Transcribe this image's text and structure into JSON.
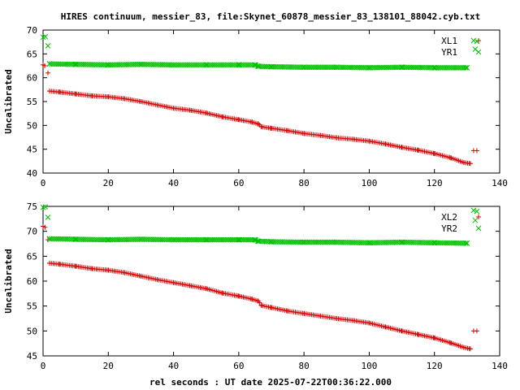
{
  "title": "HIRES continuum, messier_83, file:Skynet_60878_messier_83_138101_88042.cyb.txt",
  "xlabel": "rel seconds : UT date 2025-07-22T00:36:22.000",
  "chart_data": [
    {
      "type": "scatter",
      "ylabel": "Uncalibrated",
      "xlim": [
        0,
        140
      ],
      "ylim": [
        40,
        70
      ],
      "xticks": [
        0,
        20,
        40,
        60,
        80,
        100,
        120,
        140
      ],
      "yticks": [
        40,
        45,
        50,
        55,
        60,
        65,
        70
      ],
      "legend": "top-right",
      "series": [
        {
          "name": "XL1",
          "color": "#e00000",
          "marker": "plus",
          "points": [
            [
              0,
              62.7
            ],
            [
              0.5,
              62.5
            ],
            [
              1.5,
              61.0
            ],
            [
              2,
              57.2
            ],
            [
              5,
              57.0
            ],
            [
              10,
              56.6
            ],
            [
              15,
              56.2
            ],
            [
              20,
              56.0
            ],
            [
              25,
              55.6
            ],
            [
              30,
              55.0
            ],
            [
              35,
              54.3
            ],
            [
              40,
              53.6
            ],
            [
              45,
              53.2
            ],
            [
              50,
              52.6
            ],
            [
              55,
              51.8
            ],
            [
              60,
              51.2
            ],
            [
              64,
              50.7
            ],
            [
              66,
              50.3
            ],
            [
              67,
              49.7
            ],
            [
              70,
              49.4
            ],
            [
              75,
              48.9
            ],
            [
              80,
              48.3
            ],
            [
              85,
              47.9
            ],
            [
              90,
              47.4
            ],
            [
              95,
              47.1
            ],
            [
              100,
              46.7
            ],
            [
              105,
              46.1
            ],
            [
              110,
              45.4
            ],
            [
              115,
              44.8
            ],
            [
              120,
              44.1
            ],
            [
              125,
              43.2
            ],
            [
              129,
              42.2
            ],
            [
              131,
              42.0
            ],
            [
              132,
              44.7
            ],
            [
              133,
              44.7
            ]
          ]
        },
        {
          "name": "YR1",
          "color": "#00c000",
          "marker": "x",
          "points": [
            [
              0,
              68.5
            ],
            [
              0.7,
              68.6
            ],
            [
              1.5,
              66.7
            ],
            [
              2,
              62.9
            ],
            [
              10,
              62.8
            ],
            [
              20,
              62.7
            ],
            [
              30,
              62.8
            ],
            [
              40,
              62.7
            ],
            [
              50,
              62.7
            ],
            [
              60,
              62.7
            ],
            [
              65,
              62.7
            ],
            [
              66,
              62.4
            ],
            [
              70,
              62.3
            ],
            [
              80,
              62.2
            ],
            [
              90,
              62.2
            ],
            [
              100,
              62.1
            ],
            [
              110,
              62.2
            ],
            [
              120,
              62.1
            ],
            [
              130,
              62.1
            ],
            [
              132,
              67.8
            ],
            [
              133,
              67.6
            ],
            [
              132.5,
              66.0
            ]
          ]
        }
      ]
    },
    {
      "type": "scatter",
      "ylabel": "Uncalibrated",
      "xlim": [
        0,
        140
      ],
      "ylim": [
        45,
        75
      ],
      "xticks": [
        0,
        20,
        40,
        60,
        80,
        100,
        120,
        140
      ],
      "yticks": [
        45,
        50,
        55,
        60,
        65,
        70,
        75
      ],
      "legend": "top-right",
      "series": [
        {
          "name": "XL2",
          "color": "#e00000",
          "marker": "plus",
          "points": [
            [
              0,
              71.0
            ],
            [
              0.6,
              70.8
            ],
            [
              1.5,
              68.3
            ],
            [
              2,
              63.6
            ],
            [
              5,
              63.4
            ],
            [
              10,
              63.0
            ],
            [
              15,
              62.5
            ],
            [
              20,
              62.2
            ],
            [
              25,
              61.7
            ],
            [
              30,
              61.0
            ],
            [
              35,
              60.3
            ],
            [
              40,
              59.7
            ],
            [
              45,
              59.1
            ],
            [
              50,
              58.5
            ],
            [
              55,
              57.6
            ],
            [
              60,
              57.0
            ],
            [
              64,
              56.4
            ],
            [
              66,
              56.0
            ],
            [
              67,
              55.1
            ],
            [
              70,
              54.7
            ],
            [
              75,
              54.0
            ],
            [
              80,
              53.5
            ],
            [
              85,
              53.0
            ],
            [
              90,
              52.5
            ],
            [
              95,
              52.1
            ],
            [
              100,
              51.6
            ],
            [
              105,
              50.8
            ],
            [
              110,
              50.0
            ],
            [
              115,
              49.3
            ],
            [
              120,
              48.6
            ],
            [
              125,
              47.6
            ],
            [
              129,
              46.7
            ],
            [
              131,
              46.4
            ],
            [
              132,
              50.0
            ],
            [
              133,
              50.0
            ]
          ]
        },
        {
          "name": "YR2",
          "color": "#00c000",
          "marker": "x",
          "points": [
            [
              0,
              74.8
            ],
            [
              0.7,
              74.9
            ],
            [
              1.5,
              72.8
            ],
            [
              2,
              68.5
            ],
            [
              10,
              68.4
            ],
            [
              20,
              68.3
            ],
            [
              30,
              68.4
            ],
            [
              40,
              68.3
            ],
            [
              50,
              68.3
            ],
            [
              60,
              68.3
            ],
            [
              65,
              68.3
            ],
            [
              66,
              68.0
            ],
            [
              70,
              67.9
            ],
            [
              80,
              67.8
            ],
            [
              90,
              67.8
            ],
            [
              100,
              67.7
            ],
            [
              110,
              67.8
            ],
            [
              120,
              67.7
            ],
            [
              130,
              67.6
            ],
            [
              132,
              74.2
            ],
            [
              133,
              74.0
            ],
            [
              132.5,
              72.2
            ]
          ]
        }
      ]
    }
  ]
}
